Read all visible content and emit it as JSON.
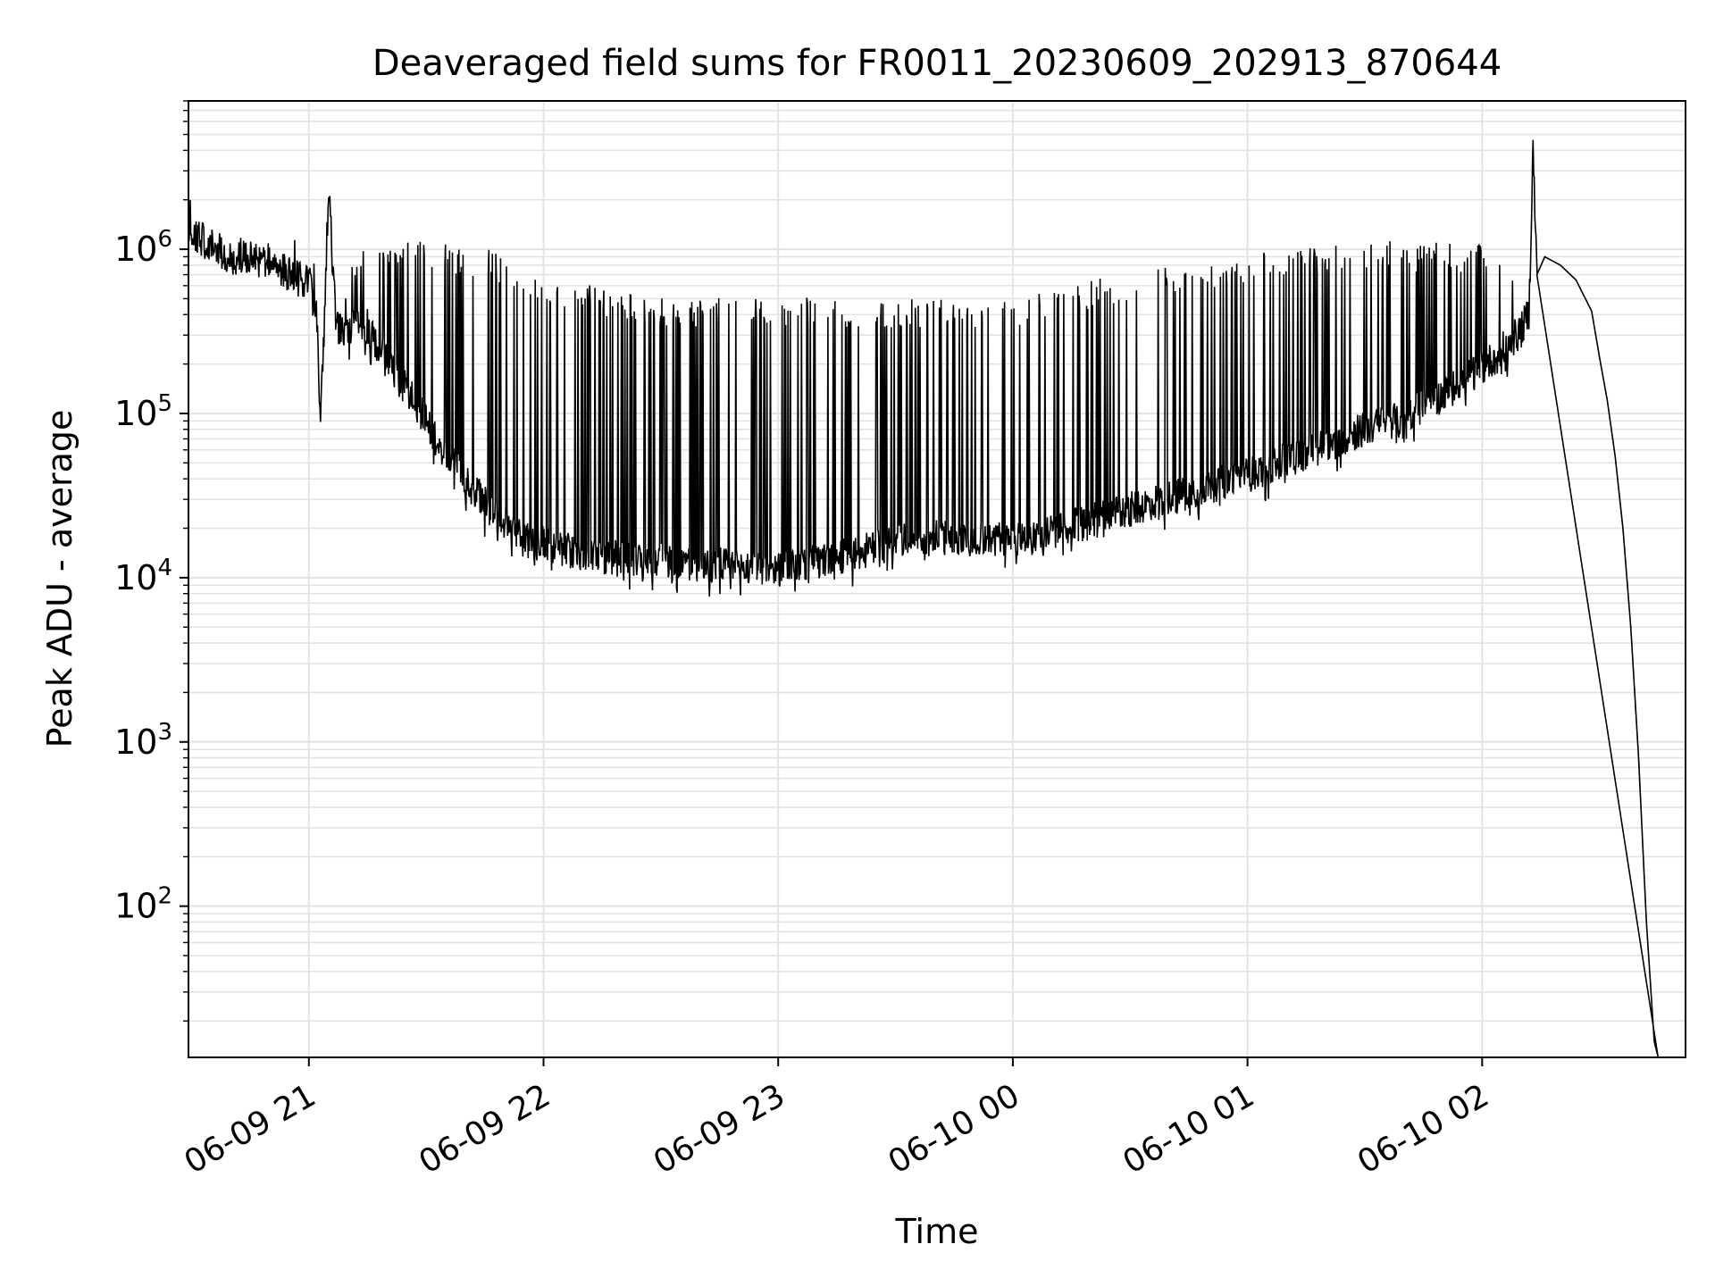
{
  "chart_data": {
    "type": "line",
    "title": "Deaveraged field sums for FR0011_20230609_202913_870644",
    "xlabel": "Time",
    "ylabel": "Peak ADU - average",
    "yscale": "log",
    "ylim": [
      12,
      8000000
    ],
    "xlim": [
      "2023-06-09T20:29:13",
      "2023-06-10T02:52:00"
    ],
    "grid": true,
    "line_color": "#000000",
    "x_ticks": [
      {
        "t": "2023-06-09T21:00:00",
        "label": "06-09 21"
      },
      {
        "t": "2023-06-09T22:00:00",
        "label": "06-09 22"
      },
      {
        "t": "2023-06-09T23:00:00",
        "label": "06-09 23"
      },
      {
        "t": "2023-06-10T00:00:00",
        "label": "06-10 00"
      },
      {
        "t": "2023-06-10T01:00:00",
        "label": "06-10 01"
      },
      {
        "t": "2023-06-10T02:00:00",
        "label": "06-10 02"
      }
    ],
    "y_ticks": [
      {
        "value": 100,
        "base": "10",
        "exp": "2"
      },
      {
        "value": 1000,
        "base": "10",
        "exp": "3"
      },
      {
        "value": 10000,
        "base": "10",
        "exp": "4"
      },
      {
        "value": 100000,
        "base": "10",
        "exp": "5"
      },
      {
        "value": 1000000,
        "base": "10",
        "exp": "6"
      }
    ],
    "series": [
      {
        "x": [
          "2023-06-09T20:29:13",
          "2023-06-09T20:35:00",
          "2023-06-09T20:40:00",
          "2023-06-09T20:45:00",
          "2023-06-09T20:50:00",
          "2023-06-09T20:55:00",
          "2023-06-09T20:58:00",
          "2023-06-09T21:00:00",
          "2023-06-09T21:02:00",
          "2023-06-09T21:03:00",
          "2023-06-09T21:04:00",
          "2023-06-09T21:05:00",
          "2023-06-09T21:07:00",
          "2023-06-09T21:10:00",
          "2023-06-09T21:15:00",
          "2023-06-09T21:20:00",
          "2023-06-09T21:25:00",
          "2023-06-09T21:30:00",
          "2023-06-09T21:35:00",
          "2023-06-09T21:40:00",
          "2023-06-09T21:45:00",
          "2023-06-09T21:50:00",
          "2023-06-09T21:55:00",
          "2023-06-09T22:00:00",
          "2023-06-09T22:10:00",
          "2023-06-09T22:20:00",
          "2023-06-09T22:30:00",
          "2023-06-09T22:40:00",
          "2023-06-09T22:45:00",
          "2023-06-09T22:50:00",
          "2023-06-09T23:00:00",
          "2023-06-09T23:10:00",
          "2023-06-09T23:20:00",
          "2023-06-09T23:30:00",
          "2023-06-09T23:40:00",
          "2023-06-09T23:50:00",
          "2023-06-10T00:00:00",
          "2023-06-10T00:10:00",
          "2023-06-10T00:20:00",
          "2023-06-10T00:30:00",
          "2023-06-10T00:40:00",
          "2023-06-10T00:50:00",
          "2023-06-10T01:00:00",
          "2023-06-10T01:10:00",
          "2023-06-10T01:20:00",
          "2023-06-10T01:30:00",
          "2023-06-10T01:40:00",
          "2023-06-10T01:50:00",
          "2023-06-10T02:00:00",
          "2023-06-10T02:05:00",
          "2023-06-10T02:10:00",
          "2023-06-10T02:12:00",
          "2023-06-10T02:13:00",
          "2023-06-10T02:14:00",
          "2023-06-10T02:16:00",
          "2023-06-10T02:20:00",
          "2023-06-10T02:24:00",
          "2023-06-10T02:28:00",
          "2023-06-10T02:30:00",
          "2023-06-10T02:32:00",
          "2023-06-10T02:34:00",
          "2023-06-10T02:36:00",
          "2023-06-10T02:38:00",
          "2023-06-10T02:40:00",
          "2023-06-10T02:42:00",
          "2023-06-10T02:44:00",
          "2023-06-10T02:45:00"
        ],
        "y": [
          1300000,
          1050000,
          900000,
          880000,
          850000,
          700000,
          650000,
          650000,
          400000,
          90000,
          350000,
          2400000,
          320000,
          330000,
          340000,
          200000,
          140000,
          90000,
          55000,
          40000,
          28000,
          22000,
          18000,
          16000,
          14000,
          13000,
          12500,
          12000,
          12000,
          11500,
          11500,
          12500,
          14000,
          16500,
          17500,
          17500,
          17000,
          19000,
          22000,
          26000,
          31000,
          36000,
          42000,
          52000,
          64000,
          80000,
          95000,
          130000,
          190000,
          240000,
          320000,
          420000,
          4200000,
          700000,
          900000,
          800000,
          650000,
          420000,
          220000,
          120000,
          55000,
          20000,
          5000,
          800,
          80,
          15,
          12
        ]
      }
    ],
    "spikes": {
      "start": "2023-06-09T21:10:00",
      "end": "2023-06-10T02:08:00",
      "peak_levels": {
        "x": [
          "2023-06-09T21:10:00",
          "2023-06-09T21:30:00",
          "2023-06-09T21:45:00",
          "2023-06-09T22:00:00",
          "2023-06-09T22:30:00",
          "2023-06-09T23:00:00",
          "2023-06-09T23:30:00",
          "2023-06-10T00:00:00",
          "2023-06-10T00:30:00",
          "2023-06-10T01:00:00",
          "2023-06-10T01:30:00",
          "2023-06-10T02:00:00",
          "2023-06-10T02:08:00"
        ],
        "y": [
          900000,
          1000000,
          900000,
          600000,
          450000,
          450000,
          440000,
          440000,
          650000,
          850000,
          1000000,
          950000,
          700000
        ]
      }
    }
  }
}
